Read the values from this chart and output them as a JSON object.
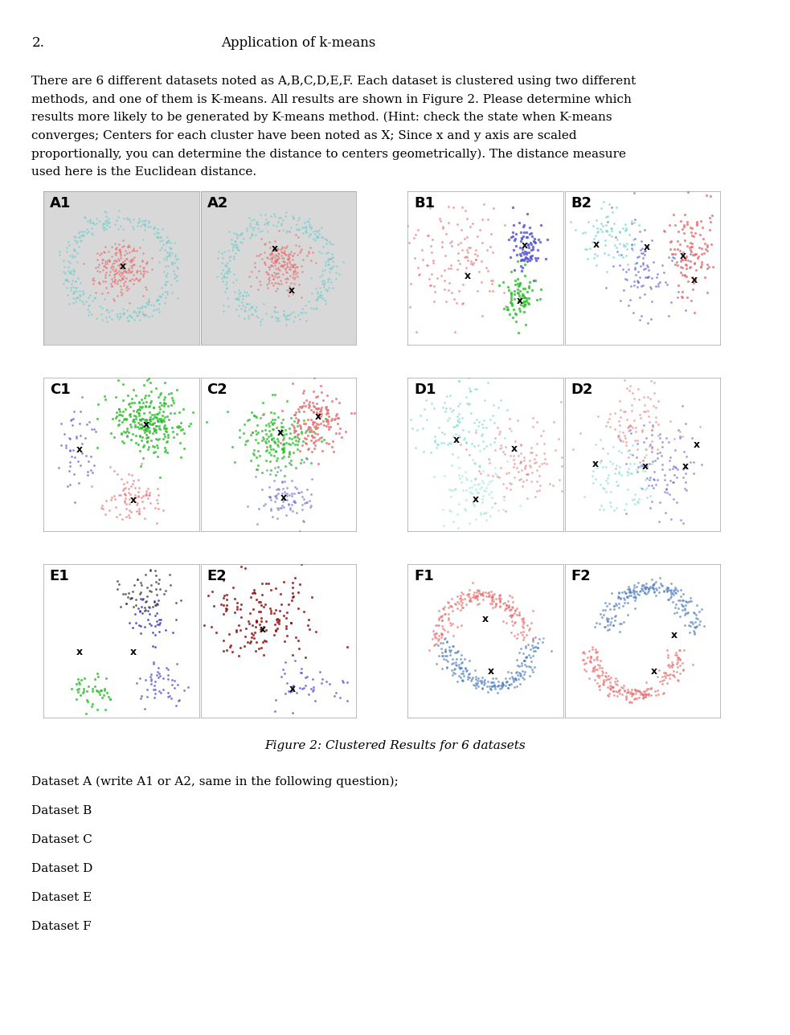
{
  "title_number": "2.",
  "title_text": "Application of k-means",
  "paragraph_lines": [
    "There are 6 different datasets noted as A,B,C,D,E,F. Each dataset is clustered using two different",
    "methods, and one of them is K-means. All results are shown in Figure 2. Please determine which",
    "results more likely to be generated by K-means method. (Hint: check the state when K-means",
    "converges; Centers for each cluster have been noted as X; Since x and y axis are scaled",
    "proportionally, you can determine the distance to centers geometrically). The distance measure",
    "used here is the Euclidean distance."
  ],
  "figure_caption": "Figure 2: Clustered Results for 6 datasets",
  "questions": [
    "Dataset A (write A1 or A2, same in the following question);",
    "Dataset B",
    "Dataset C",
    "Dataset D",
    "Dataset E",
    "Dataset F"
  ],
  "panel_labels": [
    "A1",
    "A2",
    "B1",
    "B2",
    "C1",
    "C2",
    "D1",
    "D2",
    "E1",
    "E2",
    "F1",
    "F2"
  ],
  "bg_gray_panels": [
    "A1",
    "A2"
  ],
  "colors": {
    "cyan": "#70cece",
    "red": "#e87070",
    "blue": "#5050d0",
    "green": "#30c030",
    "darkred": "#8b0000",
    "teal": "#70d8c8",
    "lightcyan": "#90e8d0",
    "purple": "#7070d0",
    "navy": "#3030c0",
    "darkgray": "#404040",
    "bg_gray": "#d8d8d8"
  }
}
